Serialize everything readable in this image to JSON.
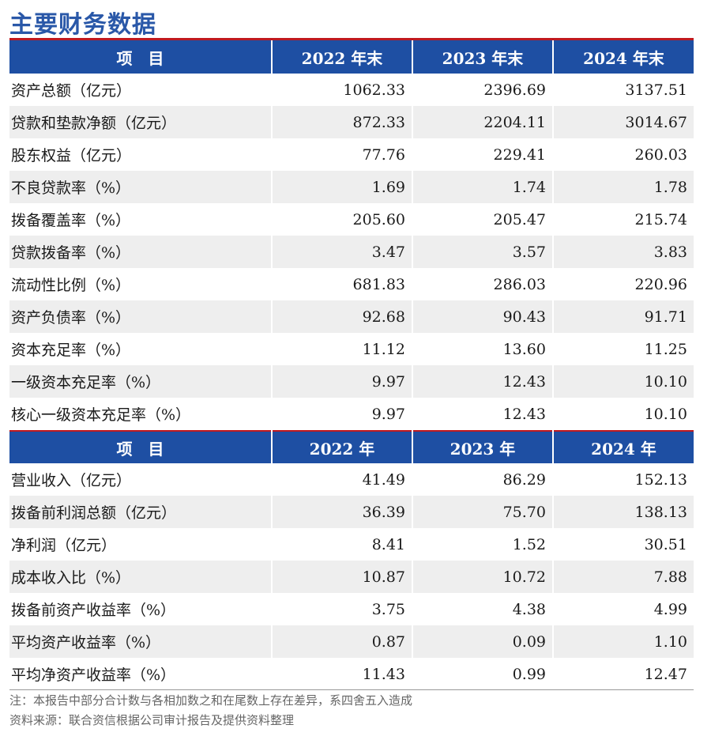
{
  "title": "主要财务数据",
  "table1": {
    "headers": [
      "项　目",
      "2022 年末",
      "2023 年末",
      "2024 年末"
    ],
    "rows": [
      {
        "label": "资产总额（亿元）",
        "values": [
          "1062.33",
          "2396.69",
          "3137.51"
        ]
      },
      {
        "label": "贷款和垫款净额（亿元）",
        "values": [
          "872.33",
          "2204.11",
          "3014.67"
        ]
      },
      {
        "label": "股东权益（亿元）",
        "values": [
          "77.76",
          "229.41",
          "260.03"
        ]
      },
      {
        "label": "不良贷款率（%）",
        "values": [
          "1.69",
          "1.74",
          "1.78"
        ]
      },
      {
        "label": "拨备覆盖率（%）",
        "values": [
          "205.60",
          "205.47",
          "215.74"
        ]
      },
      {
        "label": "贷款拨备率（%）",
        "values": [
          "3.47",
          "3.57",
          "3.83"
        ]
      },
      {
        "label": "流动性比例（%）",
        "values": [
          "681.83",
          "286.03",
          "220.96"
        ]
      },
      {
        "label": "资产负债率（%）",
        "values": [
          "92.68",
          "90.43",
          "91.71"
        ]
      },
      {
        "label": "资本充足率（%）",
        "values": [
          "11.12",
          "13.60",
          "11.25"
        ]
      },
      {
        "label": "一级资本充足率（%）",
        "values": [
          "9.97",
          "12.43",
          "10.10"
        ]
      },
      {
        "label": "核心一级资本充足率（%）",
        "values": [
          "9.97",
          "12.43",
          "10.10"
        ]
      }
    ]
  },
  "table2": {
    "headers": [
      "项　目",
      "2022 年",
      "2023 年",
      "2024 年"
    ],
    "rows": [
      {
        "label": "营业收入（亿元）",
        "values": [
          "41.49",
          "86.29",
          "152.13"
        ]
      },
      {
        "label": "拨备前利润总额（亿元）",
        "values": [
          "36.39",
          "75.70",
          "138.13"
        ]
      },
      {
        "label": "净利润（亿元）",
        "values": [
          "8.41",
          "1.52",
          "30.51"
        ]
      },
      {
        "label": "成本收入比（%）",
        "values": [
          "10.87",
          "10.72",
          "7.88"
        ]
      },
      {
        "label": "拨备前资产收益率（%）",
        "values": [
          "3.75",
          "4.38",
          "4.99"
        ]
      },
      {
        "label": "平均资产收益率（%）",
        "values": [
          "0.87",
          "0.09",
          "1.10"
        ]
      },
      {
        "label": "平均净资产收益率（%）",
        "values": [
          "11.43",
          "0.99",
          "12.47"
        ]
      }
    ]
  },
  "notes": [
    "注：本报告中部分合计数与各相加数之和在尾数上存在差异，系四舍五入造成",
    "资料来源：联合资信根据公司审计报告及提供资料整理"
  ]
}
